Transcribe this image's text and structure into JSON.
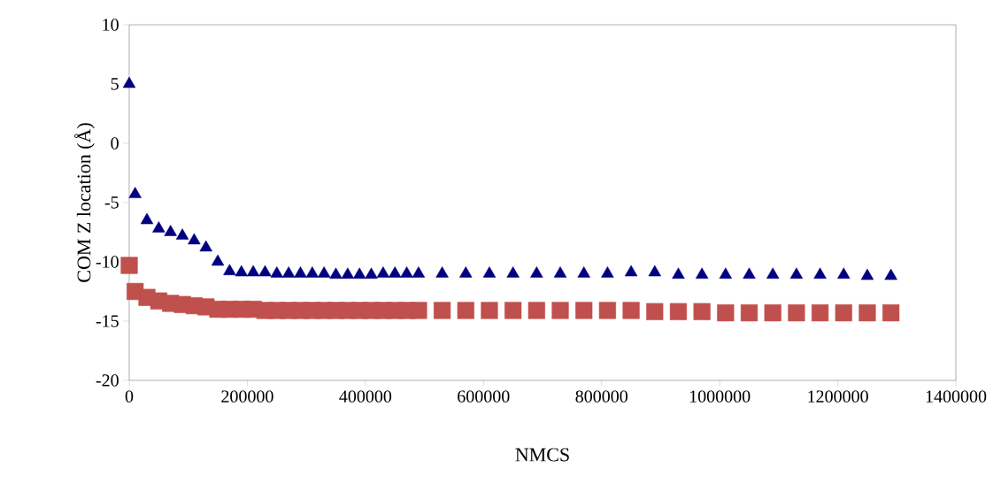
{
  "chart_data": {
    "type": "scatter",
    "xlabel": "NMCS",
    "ylabel": "COM Z location (Å)",
    "x": [
      0,
      10000,
      30000,
      50000,
      70000,
      90000,
      110000,
      130000,
      150000,
      170000,
      190000,
      210000,
      230000,
      250000,
      270000,
      290000,
      310000,
      330000,
      350000,
      370000,
      390000,
      410000,
      430000,
      450000,
      470000,
      490000,
      530000,
      570000,
      610000,
      650000,
      690000,
      730000,
      770000,
      810000,
      850000,
      890000,
      930000,
      970000,
      1010000,
      1050000,
      1090000,
      1130000,
      1170000,
      1210000,
      1250000,
      1290000
    ],
    "series": [
      {
        "color": "#000080",
        "marker": "triangle",
        "values": [
          5.0,
          -4.3,
          -6.5,
          -7.2,
          -7.5,
          -7.8,
          -8.2,
          -8.8,
          -10.0,
          -10.8,
          -10.9,
          -10.9,
          -10.9,
          -11.0,
          -11.0,
          -11.0,
          -11.0,
          -11.0,
          -11.1,
          -11.1,
          -11.1,
          -11.1,
          -11.0,
          -11.0,
          -11.0,
          -11.0,
          -11.0,
          -11.0,
          -11.0,
          -11.0,
          -11.0,
          -11.0,
          -11.0,
          -11.0,
          -10.9,
          -10.9,
          -11.1,
          -11.1,
          -11.1,
          -11.1,
          -11.1,
          -11.1,
          -11.1,
          -11.1,
          -11.2,
          -11.2
        ]
      },
      {
        "color": "#c0504d",
        "marker": "square",
        "values": [
          -10.3,
          -12.5,
          -13.0,
          -13.3,
          -13.5,
          -13.6,
          -13.7,
          -13.8,
          -14.0,
          -14.0,
          -14.0,
          -14.0,
          -14.1,
          -14.1,
          -14.1,
          -14.1,
          -14.1,
          -14.1,
          -14.1,
          -14.1,
          -14.1,
          -14.1,
          -14.1,
          -14.1,
          -14.1,
          -14.1,
          -14.1,
          -14.1,
          -14.1,
          -14.1,
          -14.1,
          -14.1,
          -14.1,
          -14.1,
          -14.1,
          -14.2,
          -14.2,
          -14.2,
          -14.3,
          -14.3,
          -14.3,
          -14.3,
          -14.3,
          -14.3,
          -14.3,
          -14.3
        ]
      }
    ],
    "xlim": [
      0,
      1400000
    ],
    "xticks": [
      0,
      200000,
      400000,
      600000,
      800000,
      1000000,
      1200000,
      1400000
    ],
    "ylim": [
      -20,
      10
    ],
    "yticks": [
      -20,
      -15,
      -10,
      -5,
      0,
      5,
      10
    ]
  }
}
